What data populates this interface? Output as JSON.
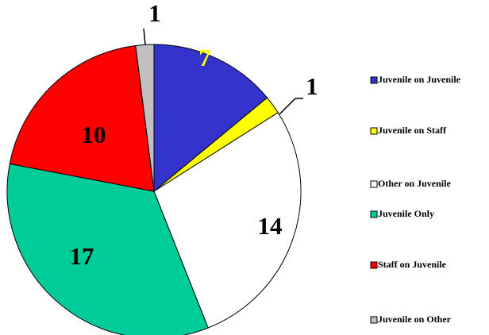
{
  "chart_data": {
    "type": "pie",
    "categories": [
      "Juvenile on Juvenile",
      "Juvenile on Staff",
      "Other on Juvenile",
      "Juvenile Only",
      "Staff on Juvenile",
      "Juvenile on Other"
    ],
    "values": [
      7,
      1,
      14,
      17,
      10,
      1
    ],
    "colors": [
      "#3333cc",
      "#ffff00",
      "#ffffff",
      "#00cc99",
      "#ff0000",
      "#c0c0c0"
    ],
    "label_colors": [
      "#ffff00",
      "#000000",
      "#000000",
      "#000000",
      "#000000",
      "#000000"
    ]
  }
}
